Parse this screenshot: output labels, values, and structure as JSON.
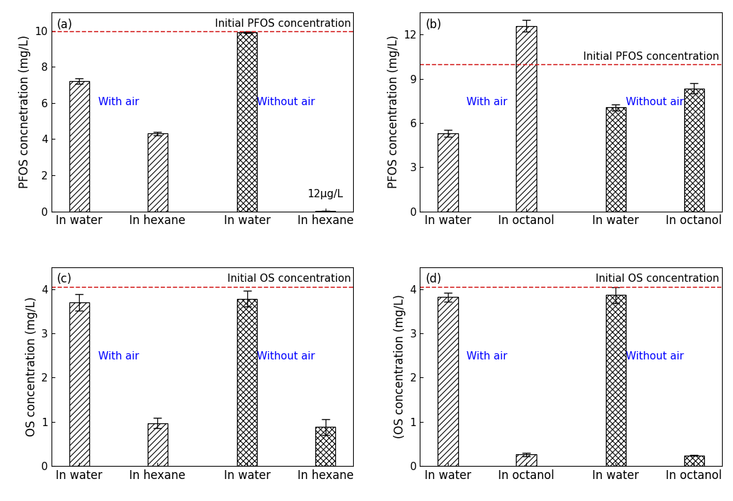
{
  "chart_data": [
    {
      "type": "bar",
      "title": "(a)",
      "ylabel": "PFOS concnetration (mg/L)",
      "categories": [
        "In water",
        "In hexane",
        "In water",
        "In hexane"
      ],
      "series": [
        {
          "name": "With air",
          "color": "#ffffff",
          "values": [
            7.2,
            4.3,
            null,
            null
          ],
          "errors": [
            0.15,
            0.08,
            null,
            null
          ]
        },
        {
          "name": "Without air",
          "color": "#ffffff",
          "values": [
            null,
            null,
            9.9,
            0.012
          ],
          "errors": [
            null,
            null,
            0.05,
            0
          ]
        }
      ],
      "reference_line": {
        "value": 9.95,
        "label": "Initial PFOS concentration"
      },
      "annotations": [
        {
          "text": "12μg/L",
          "category": 3
        }
      ],
      "ylim": [
        0,
        11
      ],
      "yticks": [
        0,
        2,
        4,
        6,
        8,
        10
      ]
    },
    {
      "type": "bar",
      "title": "(b)",
      "ylabel": "PFOS concentration (mg/L)",
      "categories": [
        "In water",
        "In octanol",
        "In water",
        "In octanol"
      ],
      "series": [
        {
          "name": "With air",
          "color": "#ffffff",
          "values": [
            5.3,
            12.6,
            null,
            null
          ],
          "errors": [
            0.25,
            0.4,
            null,
            null
          ]
        },
        {
          "name": "Without air",
          "color": "#ffffff",
          "values": [
            null,
            null,
            7.05,
            8.35
          ],
          "errors": [
            null,
            null,
            0.2,
            0.35
          ]
        }
      ],
      "reference_line": {
        "value": 9.95,
        "label": "Initial PFOS concentration"
      },
      "ylim": [
        0,
        13.5
      ],
      "yticks": [
        0,
        3,
        6,
        9,
        12
      ]
    },
    {
      "type": "bar",
      "title": "(c)",
      "ylabel": "OS concentration (mg/L)",
      "categories": [
        "In water",
        "In hexane",
        "In water",
        "In hexane"
      ],
      "series": [
        {
          "name": "With air",
          "color": "#ffffff",
          "values": [
            3.7,
            0.97,
            null,
            null
          ],
          "errors": [
            0.18,
            0.12,
            null,
            null
          ]
        },
        {
          "name": "Without air",
          "color": "#ffffff",
          "values": [
            null,
            null,
            3.78,
            0.88
          ],
          "errors": [
            null,
            null,
            0.18,
            0.18
          ]
        }
      ],
      "reference_line": {
        "value": 4.05,
        "label": "Initial OS concentration"
      },
      "ylim": [
        0,
        4.5
      ],
      "yticks": [
        0,
        1,
        2,
        3,
        4
      ]
    },
    {
      "type": "bar",
      "title": "(d)",
      "ylabel": "(OS concentration (mg/L)",
      "categories": [
        "In water",
        "In octanol",
        "In water",
        "In octanol"
      ],
      "series": [
        {
          "name": "With air",
          "color": "#ffffff",
          "values": [
            3.82,
            0.26,
            null,
            null
          ],
          "errors": [
            0.1,
            0.04,
            null,
            null
          ]
        },
        {
          "name": "Without air",
          "color": "#ffffff",
          "values": [
            null,
            null,
            3.87,
            0.24
          ],
          "errors": [
            null,
            null,
            0.18,
            0.01
          ]
        }
      ],
      "reference_line": {
        "value": 4.05,
        "label": "Initial OS concentration"
      },
      "ylim": [
        0,
        4.5
      ],
      "yticks": [
        0,
        1,
        2,
        3,
        4
      ]
    }
  ]
}
